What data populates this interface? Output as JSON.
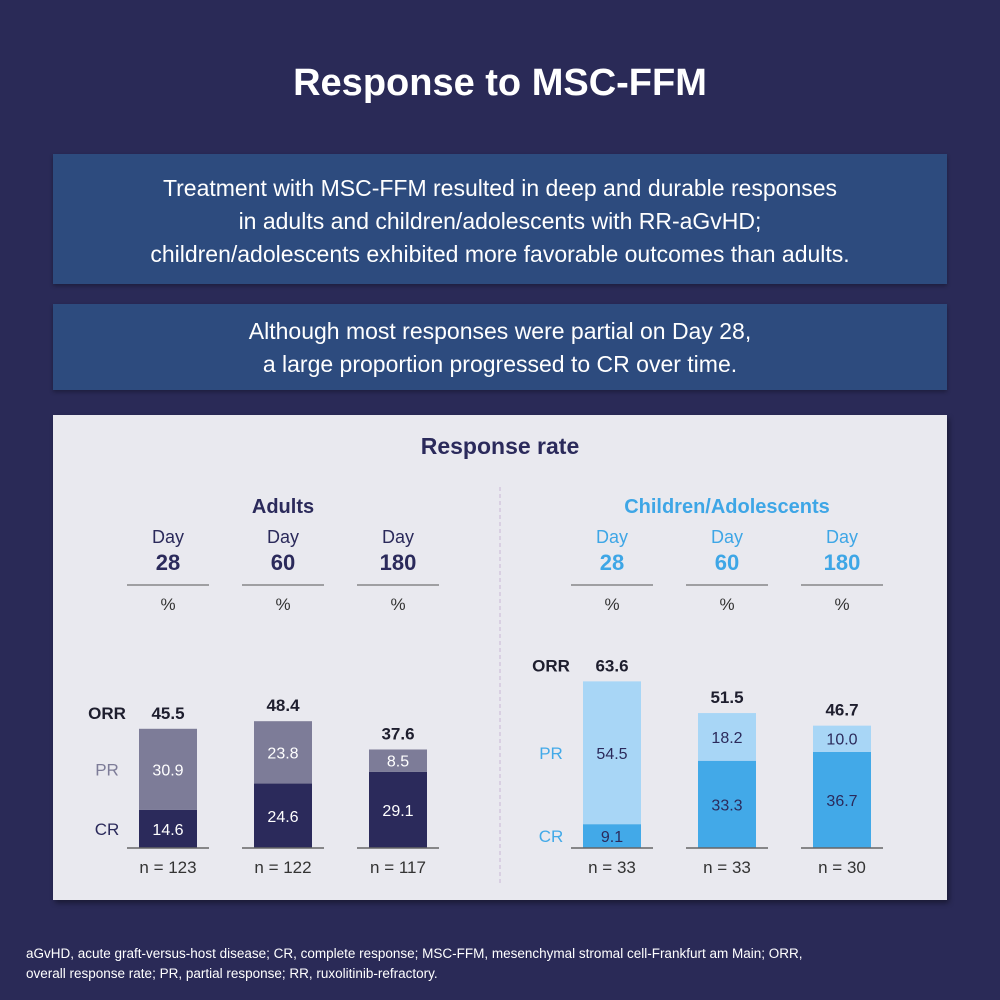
{
  "title": "Response to MSC-FFM",
  "box1": [
    "Treatment with MSC-FFM resulted in deep and durable responses",
    "in adults and children/adolescents with RR-aGvHD;",
    "children/adolescents exhibited more favorable outcomes than adults."
  ],
  "box2": [
    "Although most responses were partial on Day 28,",
    "a large proportion progressed to CR over time."
  ],
  "footnote": [
    "aGvHD, acute graft-versus-host disease; CR, complete response; MSC-FFM, mesenchymal stromal cell-Frankfurt am Main; ORR,",
    "overall response rate; PR, partial response; RR, ruxolitinib-refractory."
  ],
  "chart_data": {
    "type": "bar",
    "stacked": true,
    "title": "Response rate",
    "unit": "%",
    "row_labels": {
      "orr": "ORR",
      "pr": "PR",
      "cr": "CR"
    },
    "day_label": "Day",
    "colors": {
      "adult_cr": "#2b2a5b",
      "adult_pr": "#7d7c98",
      "child_cr": "#42a9e8",
      "child_pr": "#a8d6f6",
      "child_header": "#3ea6e6"
    },
    "groups": [
      {
        "name": "Adults",
        "categories": [
          "28",
          "60",
          "180"
        ],
        "n": [
          "n = 123",
          "n = 122",
          "n = 117"
        ],
        "series": [
          {
            "name": "CR",
            "values": [
              14.6,
              24.6,
              29.1
            ]
          },
          {
            "name": "PR",
            "values": [
              30.9,
              23.8,
              8.5
            ]
          }
        ],
        "orr": [
          45.5,
          48.4,
          37.6
        ]
      },
      {
        "name": "Children/Adolescents",
        "categories": [
          "28",
          "60",
          "180"
        ],
        "n": [
          "n = 33",
          "n = 33",
          "n = 30"
        ],
        "series": [
          {
            "name": "CR",
            "values": [
              9.1,
              33.3,
              36.7
            ]
          },
          {
            "name": "PR",
            "values": [
              54.5,
              18.2,
              10.0
            ]
          }
        ],
        "orr": [
          63.6,
          51.5,
          46.7
        ]
      }
    ],
    "ylim": [
      0,
      100
    ]
  }
}
